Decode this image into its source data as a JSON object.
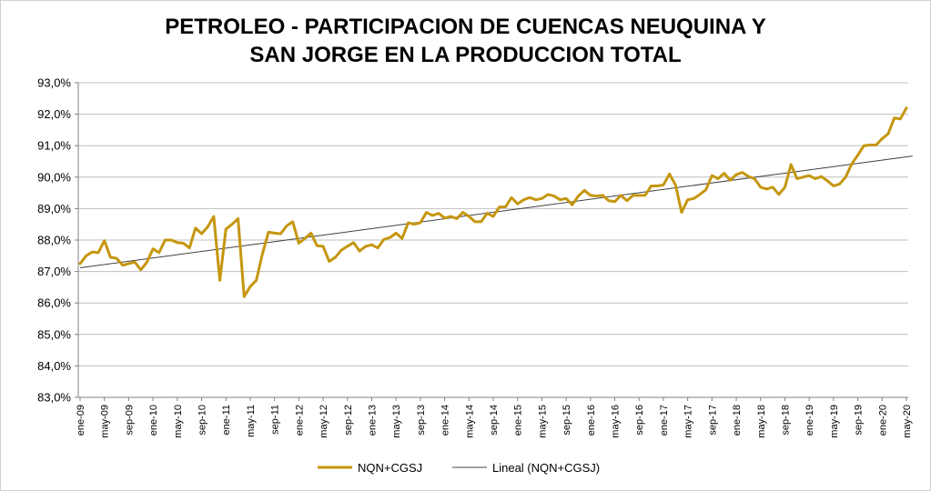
{
  "chart_data": {
    "type": "line",
    "title": [
      "PETROLEO - PARTICIPACION DE CUENCAS NEUQUINA Y",
      "SAN JORGE EN LA PRODUCCION TOTAL"
    ],
    "xlabel": "",
    "ylabel": "",
    "ylim": [
      83.0,
      93.0
    ],
    "yticks": [
      "83,0%",
      "84,0%",
      "85,0%",
      "86,0%",
      "87,0%",
      "88,0%",
      "89,0%",
      "90,0%",
      "91,0%",
      "92,0%",
      "93,0%"
    ],
    "xtick_labels": [
      "ene-09",
      "may-09",
      "sep-09",
      "ene-10",
      "may-10",
      "sep-10",
      "ene-11",
      "may-11",
      "sep-11",
      "ene-12",
      "may-12",
      "sep-12",
      "ene-13",
      "may-13",
      "sep-13",
      "ene-14",
      "may-14",
      "sep-14",
      "ene-15",
      "may-15",
      "sep-15",
      "ene-16",
      "may-16",
      "sep-16",
      "ene-17",
      "may-17",
      "sep-17",
      "ene-18",
      "may-18",
      "sep-18",
      "ene-19",
      "may-19",
      "sep-19",
      "ene-20",
      "may-20"
    ],
    "series": [
      {
        "name": "NQN+CGSJ",
        "color": "#c5960f",
        "values": [
          87.25,
          87.5,
          87.62,
          87.6,
          87.98,
          87.45,
          87.42,
          87.2,
          87.25,
          87.3,
          87.05,
          87.3,
          87.72,
          87.6,
          88.0,
          88.0,
          87.92,
          87.9,
          87.75,
          88.38,
          88.2,
          88.42,
          88.75,
          86.72,
          88.35,
          88.5,
          88.68,
          86.2,
          86.52,
          86.72,
          87.55,
          88.25,
          88.22,
          88.2,
          88.45,
          88.58,
          87.9,
          88.05,
          88.22,
          87.82,
          87.8,
          87.32,
          87.45,
          87.68,
          87.8,
          87.92,
          87.65,
          87.8,
          87.85,
          87.75,
          88.02,
          88.08,
          88.22,
          88.05,
          88.55,
          88.5,
          88.55,
          88.88,
          88.78,
          88.85,
          88.7,
          88.75,
          88.68,
          88.88,
          88.75,
          88.58,
          88.58,
          88.85,
          88.75,
          89.05,
          89.05,
          89.35,
          89.15,
          89.28,
          89.35,
          89.28,
          89.32,
          89.45,
          89.4,
          89.28,
          89.32,
          89.12,
          89.4,
          89.58,
          89.42,
          89.4,
          89.42,
          89.25,
          89.22,
          89.42,
          89.25,
          89.42,
          89.42,
          89.42,
          89.72,
          89.72,
          89.75,
          90.1,
          89.75,
          88.88,
          89.28,
          89.32,
          89.45,
          89.6,
          90.05,
          89.95,
          90.12,
          89.9,
          90.08,
          90.15,
          90.02,
          89.95,
          89.68,
          89.62,
          89.68,
          89.45,
          89.68,
          90.4,
          89.95,
          90.0,
          90.05,
          89.95,
          90.02,
          89.88,
          89.72,
          89.78,
          90.0,
          90.42,
          90.7,
          91.0,
          91.02,
          91.02,
          91.22,
          91.38,
          91.88,
          91.85,
          92.2
        ]
      },
      {
        "name": "Lineal (NQN+CGSJ)",
        "color": "#404040",
        "x": [
          0,
          137
        ],
        "values": [
          87.12,
          90.67
        ]
      }
    ],
    "legend": "bottom-center"
  }
}
